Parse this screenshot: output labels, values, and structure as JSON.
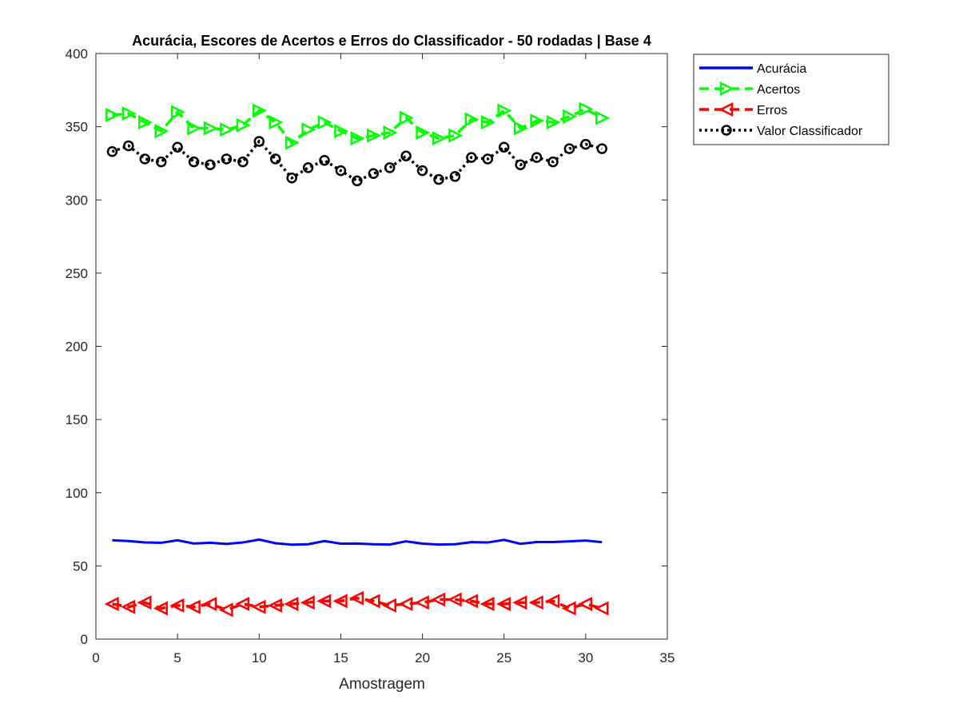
{
  "chart_data": {
    "type": "line",
    "title": "Acurácia, Escores de Acertos e Erros do Classificador - 50 rodadas | Base 4",
    "xlabel": "Amostragem",
    "ylabel": "",
    "xlim": [
      0,
      35
    ],
    "ylim": [
      0,
      400
    ],
    "xticks": [
      0,
      5,
      10,
      15,
      20,
      25,
      30,
      35
    ],
    "yticks": [
      0,
      50,
      100,
      150,
      200,
      250,
      300,
      350,
      400
    ],
    "grid": false,
    "legend_position": "outside-top-right",
    "x": [
      1,
      2,
      3,
      4,
      5,
      6,
      7,
      8,
      9,
      10,
      11,
      12,
      13,
      14,
      15,
      16,
      17,
      18,
      19,
      20,
      21,
      22,
      23,
      24,
      25,
      26,
      27,
      28,
      29,
      30,
      31
    ],
    "series": [
      {
        "name": "Acurácia",
        "color": "#0000ff",
        "style": "solid",
        "marker": "none",
        "values": [
          67.5,
          67,
          66,
          65.8,
          67.5,
          65.3,
          65.8,
          65,
          66,
          68,
          65.5,
          64.5,
          64.8,
          67,
          65.2,
          65.3,
          64.8,
          64.6,
          66.8,
          65.2,
          64.6,
          64.8,
          66.2,
          66,
          67.8,
          65.1,
          66.3,
          66.3,
          66.8,
          67.3,
          66.2
        ]
      },
      {
        "name": "Acertos",
        "color": "#00ff00",
        "style": "dashed",
        "marker": "triangle-right",
        "values": [
          358,
          359,
          353,
          347,
          360,
          349,
          349,
          348,
          351,
          361,
          353,
          339,
          348,
          353,
          347,
          342,
          344,
          346,
          356,
          346,
          342,
          344,
          355,
          353,
          361,
          349,
          354,
          353,
          357,
          362,
          356
        ]
      },
      {
        "name": "Erros",
        "color": "#ff0000",
        "style": "dashed",
        "marker": "triangle-left",
        "values": [
          24,
          22,
          25,
          21,
          23,
          22,
          24,
          20,
          24,
          22,
          23,
          24,
          25,
          26,
          26,
          28,
          26,
          23,
          24,
          25,
          27,
          27,
          26,
          24,
          24,
          25,
          25,
          26,
          21,
          24,
          21
        ]
      },
      {
        "name": "Valor Classificador",
        "color": "#000000",
        "style": "dotted",
        "marker": "circle",
        "values": [
          333,
          337,
          328,
          326,
          336,
          326,
          324,
          328,
          326,
          340,
          328,
          315,
          322,
          327,
          320,
          313,
          318,
          322,
          330,
          320,
          314,
          316,
          329,
          328,
          336,
          324,
          329,
          326,
          335,
          338,
          335
        ]
      }
    ]
  }
}
